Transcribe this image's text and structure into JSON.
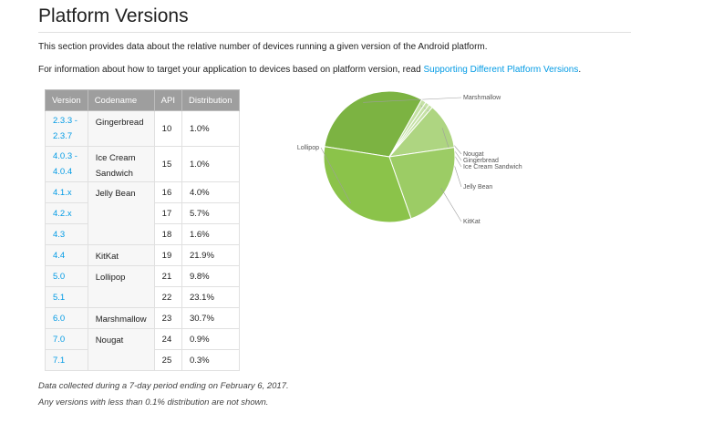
{
  "page": {
    "title": "Platform Versions",
    "intro": "This section provides data about the relative number of devices running a given version of the Android platform.",
    "target_prefix": "For information about how to target your application to devices based on platform version, read ",
    "target_link": "Supporting Different Platform Versions",
    "target_suffix": ".",
    "note1": "Data collected during a 7-day period ending on February 6, 2017.",
    "note2": "Any versions with less than 0.1% distribution are not shown."
  },
  "table": {
    "headers": [
      "Version",
      "Codename",
      "API",
      "Distribution"
    ],
    "rows": [
      {
        "version": "2.3.3 - 2.3.7",
        "codename": "Gingerbread",
        "api": "10",
        "distribution": "1.0%"
      },
      {
        "version": "4.0.3 - 4.0.4",
        "codename": "Ice Cream Sandwich",
        "api": "15",
        "distribution": "1.0%"
      },
      {
        "version": "4.1.x",
        "codename": "Jelly Bean",
        "api": "16",
        "distribution": "4.0%"
      },
      {
        "version": "4.2.x",
        "codename": "",
        "api": "17",
        "distribution": "5.7%"
      },
      {
        "version": "4.3",
        "codename": "",
        "api": "18",
        "distribution": "1.6%"
      },
      {
        "version": "4.4",
        "codename": "KitKat",
        "api": "19",
        "distribution": "21.9%"
      },
      {
        "version": "5.0",
        "codename": "Lollipop",
        "api": "21",
        "distribution": "9.8%"
      },
      {
        "version": "5.1",
        "codename": "",
        "api": "22",
        "distribution": "23.1%"
      },
      {
        "version": "6.0",
        "codename": "Marshmallow",
        "api": "23",
        "distribution": "30.7%"
      },
      {
        "version": "7.0",
        "codename": "Nougat",
        "api": "24",
        "distribution": "0.9%"
      },
      {
        "version": "7.1",
        "codename": "",
        "api": "25",
        "distribution": "0.3%"
      }
    ]
  },
  "chart_data": {
    "type": "pie",
    "title": "",
    "categories": [
      "Marshmallow",
      "Nougat",
      "Gingerbread",
      "Ice Cream Sandwich",
      "Jelly Bean",
      "KitKat",
      "Lollipop"
    ],
    "values": [
      30.7,
      1.2,
      1.0,
      1.0,
      11.3,
      21.9,
      32.9
    ],
    "colors": [
      "#7cb342",
      "#c5e1a5",
      "#c5e1a5",
      "#c5e1a5",
      "#aed581",
      "#9ccc65",
      "#8bc34a"
    ]
  }
}
